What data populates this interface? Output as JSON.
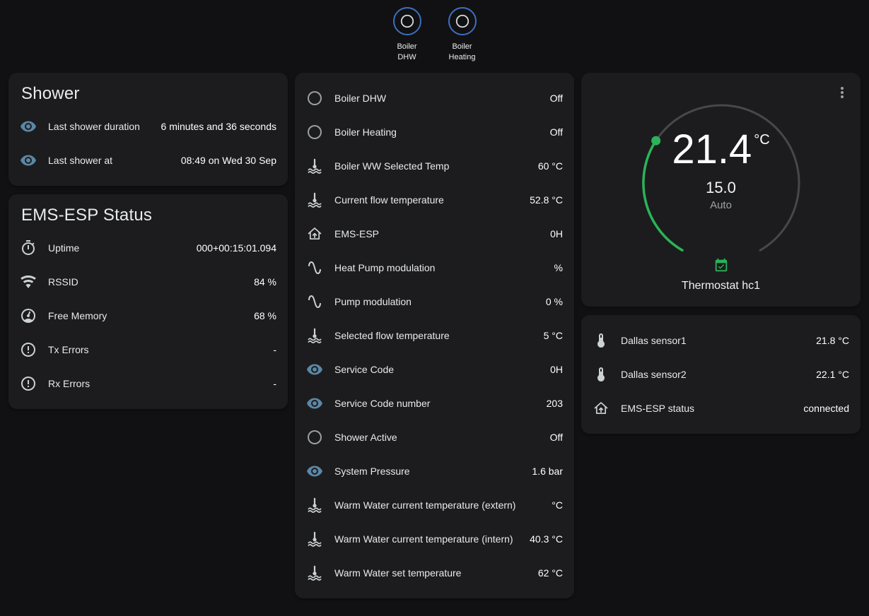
{
  "colors": {
    "page_background": "#111113",
    "card_background": "#1c1c1e",
    "accent_green": "#2bb358",
    "badge_blue": "#3d6fc0",
    "icon_blue": "#5b87a5"
  },
  "badges": [
    {
      "line1": "Boiler",
      "line2": "DHW",
      "icon": "circle-outline"
    },
    {
      "line1": "Boiler",
      "line2": "Heating",
      "icon": "circle-outline"
    }
  ],
  "shower_card": {
    "title": "Shower",
    "rows": [
      {
        "icon": "eye",
        "label": "Last shower duration",
        "value": "6 minutes and 36 seconds"
      },
      {
        "icon": "eye",
        "label": "Last shower at",
        "value": "08:49 on Wed 30 Sep"
      }
    ]
  },
  "status_card": {
    "title": "EMS-ESP Status",
    "rows": [
      {
        "icon": "timer",
        "label": "Uptime",
        "value": "000+00:15:01.094"
      },
      {
        "icon": "wifi",
        "label": "RSSID",
        "value": "84 %"
      },
      {
        "icon": "gauge",
        "label": "Free Memory",
        "value": "68 %"
      },
      {
        "icon": "alert-circle",
        "label": "Tx Errors",
        "value": "-"
      },
      {
        "icon": "alert-circle",
        "label": "Rx Errors",
        "value": "-"
      }
    ]
  },
  "entities_card": {
    "rows": [
      {
        "icon": "circle-outline",
        "label": "Boiler DHW",
        "value": "Off"
      },
      {
        "icon": "circle-outline",
        "label": "Boiler Heating",
        "value": "Off"
      },
      {
        "icon": "water-thermometer",
        "label": "Boiler WW Selected Temp",
        "value": "60 °C"
      },
      {
        "icon": "water-thermometer",
        "label": "Current flow temperature",
        "value": "52.8 °C"
      },
      {
        "icon": "home-up",
        "label": "EMS-ESP",
        "value": "0H"
      },
      {
        "icon": "sine-wave",
        "label": "Heat Pump modulation",
        "value": "%"
      },
      {
        "icon": "sine-wave",
        "label": "Pump modulation",
        "value": "0 %"
      },
      {
        "icon": "water-thermometer",
        "label": "Selected flow temperature",
        "value": "5 °C"
      },
      {
        "icon": "eye",
        "label": "Service Code",
        "value": "0H"
      },
      {
        "icon": "eye",
        "label": "Service Code number",
        "value": "203"
      },
      {
        "icon": "circle-outline",
        "label": "Shower Active",
        "value": "Off"
      },
      {
        "icon": "eye",
        "label": "System Pressure",
        "value": "1.6 bar"
      },
      {
        "icon": "water-thermometer",
        "label": "Warm Water current temperature (extern)",
        "value": "°C"
      },
      {
        "icon": "water-thermometer",
        "label": "Warm Water current temperature (intern)",
        "value": "40.3 °C"
      },
      {
        "icon": "water-thermometer",
        "label": "Warm Water set temperature",
        "value": "62 °C"
      }
    ]
  },
  "thermostat_card": {
    "current_temp": "21.4",
    "unit": "°C",
    "target_temp": "15.0",
    "mode": "Auto",
    "name": "Thermostat hc1",
    "menu_icon": "dots-vertical",
    "preset_icon": "calendar-check"
  },
  "sensors_card": {
    "rows": [
      {
        "icon": "thermometer",
        "label": "Dallas sensor1",
        "value": "21.8 °C"
      },
      {
        "icon": "thermometer",
        "label": "Dallas sensor2",
        "value": "22.1 °C"
      },
      {
        "icon": "home-up",
        "label": "EMS-ESP status",
        "value": "connected"
      }
    ]
  }
}
